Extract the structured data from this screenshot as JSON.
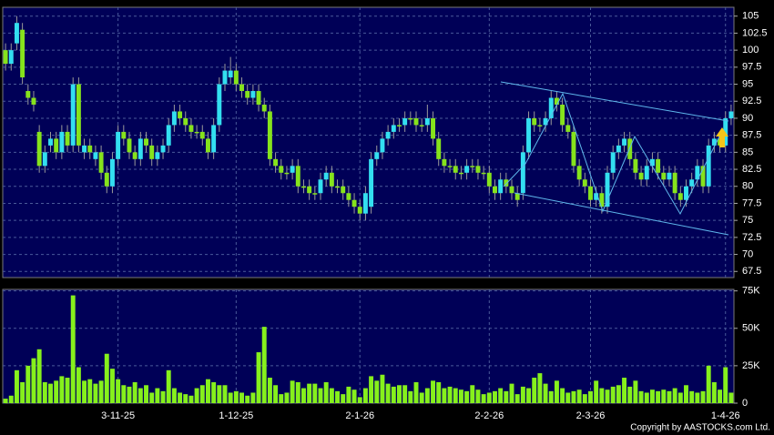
{
  "chart_data": {
    "type": "candlestick",
    "copyright": "Copyright by AASTOCKS.com Ltd.",
    "up_color": "#33dff0",
    "down_color": "#86e31c",
    "volume_color": "#86f01c",
    "grid": true,
    "categories": [
      null,
      null,
      null,
      null,
      null,
      null,
      null,
      null,
      null,
      null,
      null,
      null,
      null,
      null,
      null,
      null,
      null,
      null,
      null,
      null,
      "3-11-25",
      null,
      null,
      null,
      null,
      null,
      null,
      null,
      null,
      null,
      null,
      null,
      null,
      null,
      null,
      null,
      null,
      null,
      null,
      null,
      null,
      "1-12-25",
      null,
      null,
      null,
      null,
      null,
      null,
      null,
      null,
      null,
      null,
      null,
      null,
      null,
      null,
      null,
      null,
      null,
      null,
      null,
      null,
      null,
      "2-1-26",
      null,
      null,
      null,
      null,
      null,
      null,
      null,
      null,
      null,
      null,
      null,
      null,
      null,
      null,
      null,
      null,
      null,
      null,
      null,
      null,
      null,
      null,
      "2-2-26",
      null,
      null,
      null,
      null,
      null,
      null,
      null,
      null,
      null,
      null,
      null,
      null,
      null,
      null,
      null,
      null,
      null,
      "2-3-26",
      null,
      null,
      null,
      null,
      null,
      null,
      null,
      null,
      null,
      null,
      null,
      null,
      null,
      null,
      null,
      null,
      null,
      null,
      null,
      null,
      null,
      null,
      null,
      "1-4-26",
      null
    ],
    "open": [
      100,
      98,
      101,
      103,
      94,
      93,
      88,
      83,
      86,
      87,
      85,
      88,
      86,
      95,
      85,
      86,
      84,
      85,
      82,
      80,
      84,
      88,
      87,
      85,
      84,
      87,
      86,
      84,
      85,
      86,
      89,
      91,
      90,
      89,
      88,
      88,
      87,
      85,
      89,
      95,
      96,
      97,
      95,
      94,
      93,
      94,
      92,
      91,
      84,
      83,
      82,
      82,
      83,
      80,
      80,
      79,
      79,
      81,
      82,
      80,
      80,
      79,
      78,
      77,
      76,
      77,
      84,
      85,
      87,
      88,
      89,
      89,
      90,
      90,
      89,
      89,
      90,
      87,
      84,
      83,
      83,
      82,
      82,
      83,
      83,
      82,
      82,
      80,
      79,
      81,
      80,
      79,
      79,
      85,
      90,
      89,
      89,
      90,
      93,
      92,
      89,
      88,
      83,
      81,
      80,
      78,
      79,
      77,
      82,
      85,
      86,
      87,
      84,
      82,
      81,
      83,
      84,
      82,
      81,
      82,
      79,
      78,
      80,
      81,
      83,
      80,
      86,
      87,
      86,
      90
    ],
    "high": [
      101,
      101,
      105,
      104,
      95,
      94,
      89,
      86,
      88,
      88,
      89,
      89,
      96,
      96,
      87,
      87,
      86,
      86,
      83,
      85,
      89,
      89,
      88,
      86,
      88,
      88,
      87,
      86,
      87,
      90,
      92,
      92,
      91,
      90,
      89,
      89,
      88,
      90,
      96,
      98,
      99,
      98,
      96,
      95,
      95,
      95,
      93,
      92,
      85,
      84,
      83,
      84,
      84,
      81,
      81,
      80,
      82,
      83,
      83,
      81,
      81,
      80,
      79,
      78,
      80,
      85,
      86,
      88,
      89,
      90,
      90,
      91,
      91,
      91,
      90,
      92,
      91,
      88,
      85,
      84,
      84,
      83,
      84,
      84,
      84,
      83,
      83,
      81,
      82,
      82,
      81,
      80,
      86,
      91,
      91,
      90,
      91,
      94,
      94,
      93,
      90,
      89,
      84,
      82,
      81,
      80,
      80,
      83,
      86,
      87,
      88,
      88,
      85,
      83,
      84,
      85,
      85,
      83,
      83,
      83,
      80,
      81,
      82,
      84,
      84,
      87,
      88,
      88,
      91,
      92
    ],
    "low": [
      97,
      97,
      100,
      95,
      92,
      91,
      82,
      82,
      85,
      84,
      84,
      85,
      85,
      85,
      84,
      84,
      83,
      81,
      79,
      79,
      83,
      86,
      84,
      83,
      83,
      85,
      83,
      83,
      84,
      85,
      88,
      89,
      88,
      87,
      87,
      86,
      84,
      84,
      88,
      94,
      95,
      94,
      93,
      92,
      92,
      91,
      90,
      83,
      82,
      81,
      81,
      81,
      79,
      79,
      78,
      78,
      78,
      80,
      79,
      79,
      78,
      77,
      76,
      75,
      75,
      76,
      83,
      84,
      86,
      87,
      88,
      88,
      89,
      88,
      88,
      88,
      86,
      83,
      82,
      82,
      81,
      81,
      81,
      82,
      81,
      81,
      79,
      78,
      78,
      79,
      78,
      77,
      78,
      84,
      88,
      88,
      88,
      89,
      91,
      88,
      87,
      82,
      80,
      79,
      77,
      77,
      76,
      76,
      81,
      84,
      85,
      83,
      81,
      80,
      80,
      82,
      81,
      80,
      80,
      78,
      77,
      77,
      79,
      80,
      79,
      79,
      85,
      85,
      85,
      89
    ],
    "close": [
      98,
      100,
      104,
      96,
      93,
      92,
      83,
      85,
      87,
      85,
      88,
      86,
      95,
      86,
      86,
      85,
      85,
      82,
      80,
      84,
      88,
      87,
      85,
      84,
      87,
      86,
      84,
      85,
      86,
      89,
      91,
      90,
      89,
      88,
      88,
      87,
      85,
      89,
      95,
      97,
      97,
      95,
      94,
      93,
      94,
      92,
      91,
      84,
      83,
      82,
      82,
      83,
      80,
      80,
      79,
      79,
      81,
      82,
      80,
      80,
      79,
      78,
      77,
      76,
      79,
      84,
      85,
      87,
      88,
      89,
      89,
      90,
      90,
      89,
      89,
      90,
      87,
      84,
      83,
      83,
      82,
      82,
      83,
      83,
      82,
      82,
      80,
      79,
      81,
      80,
      79,
      78,
      85,
      90,
      89,
      89,
      90,
      93,
      92,
      89,
      88,
      83,
      81,
      80,
      78,
      79,
      77,
      82,
      85,
      86,
      87,
      84,
      82,
      81,
      83,
      84,
      82,
      81,
      82,
      79,
      78,
      80,
      81,
      83,
      80,
      86,
      87,
      86,
      90,
      91
    ],
    "volume": [
      3000,
      5000,
      22000,
      14000,
      25000,
      30000,
      36000,
      14000,
      13000,
      15000,
      18000,
      17000,
      72000,
      24000,
      15000,
      16000,
      13000,
      15000,
      33000,
      23000,
      16000,
      12000,
      11000,
      14000,
      10000,
      12000,
      7000,
      10000,
      8000,
      22000,
      10000,
      7000,
      6000,
      5000,
      10000,
      12000,
      16000,
      14000,
      12000,
      12000,
      7000,
      8000,
      7000,
      5000,
      7000,
      34000,
      51000,
      17000,
      12000,
      6000,
      7000,
      15000,
      14000,
      10000,
      13000,
      13000,
      10000,
      14000,
      10000,
      8000,
      6000,
      11000,
      9000,
      4000,
      10000,
      18000,
      15000,
      19000,
      13000,
      11000,
      12000,
      12000,
      8000,
      14000,
      7000,
      10000,
      15000,
      14000,
      10000,
      11000,
      10000,
      9000,
      8000,
      12000,
      9000,
      6000,
      7000,
      8000,
      10000,
      8000,
      13000,
      6000,
      11000,
      10000,
      17000,
      20000,
      13000,
      8000,
      15000,
      10000,
      7000,
      8000,
      9000,
      6000,
      8000,
      15000,
      10000,
      9000,
      11000,
      12000,
      17000,
      11000,
      15000,
      8000,
      7000,
      9000,
      8000,
      9000,
      8000,
      10000,
      7000,
      12000,
      8000,
      7000,
      8000,
      25000,
      14000,
      9000,
      24000,
      7000
    ],
    "ylim": [
      66.6,
      106.3
    ],
    "yticks": [
      67.5,
      70,
      72.5,
      75,
      77.5,
      80,
      82.5,
      85,
      87.5,
      90,
      92.5,
      95,
      97.5,
      100,
      102.5,
      105
    ],
    "volume_ylim": [
      0,
      76000
    ],
    "volume_yticks": [
      0,
      {
        "value": 25000,
        "label": "25K"
      },
      {
        "value": 50000,
        "label": "50K"
      },
      {
        "value": 75000,
        "label": "75K"
      }
    ]
  }
}
